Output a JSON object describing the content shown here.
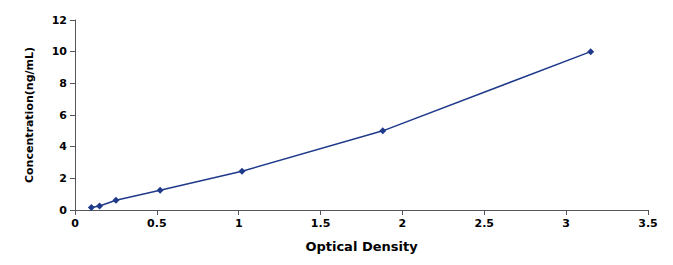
{
  "chart_data": {
    "type": "line",
    "x": [
      0.1,
      0.15,
      0.25,
      0.52,
      1.02,
      1.88,
      3.15
    ],
    "values": [
      0.16,
      0.25,
      0.62,
      1.25,
      2.45,
      5.0,
      10.0
    ],
    "color": "#1F3A8A",
    "marker": "diamond",
    "xlabel": "Optical Density",
    "ylabel": "Concentration(ng/mL)",
    "xlim": [
      0,
      3.5
    ],
    "ylim": [
      0,
      12
    ],
    "xticks": [
      0,
      0.5,
      1.0,
      1.5,
      2.0,
      2.5,
      3.0,
      3.5
    ],
    "yticks": [
      0,
      2,
      4,
      6,
      8,
      10,
      12
    ],
    "grid": false
  }
}
